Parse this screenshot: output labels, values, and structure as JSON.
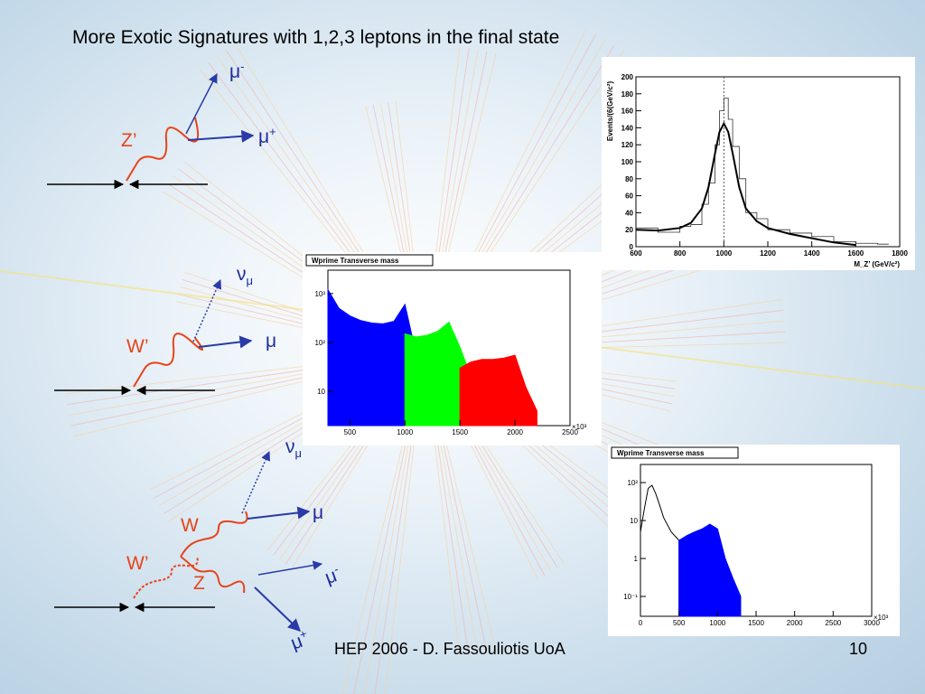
{
  "slide": {
    "title": "More Exotic Signatures with 1,2,3 leptons in the final state",
    "footer": "HEP 2006 - D. Fassouliotis UoA",
    "page_number": "10"
  },
  "diagrams": {
    "zprime": {
      "boson": "Z’",
      "lepton_top_base": "μ",
      "lepton_top_sup": "-",
      "lepton_bottom_base": "μ",
      "lepton_bottom_sup": "+"
    },
    "wprime": {
      "boson": "W’",
      "neutrino_base": "ν",
      "neutrino_sub": "μ",
      "lepton": "μ"
    },
    "wz": {
      "boson": "W’",
      "w": "W",
      "z": "Z",
      "neutrino_base": "ν",
      "neutrino_sub": "μ",
      "lepton_w": "μ",
      "lepton_z1_base": "μ",
      "lepton_z1_sup": "-",
      "lepton_z2_base": "μ",
      "lepton_z2_sup": "+"
    }
  },
  "chart_data": [
    {
      "type": "line",
      "name": "zprime-mass",
      "ylabel": "Events/(6(GeV/c²)",
      "xlabel": "M_Z’ (GeV/c²)",
      "xlim": [
        600,
        1800
      ],
      "ylim": [
        0,
        200
      ],
      "x_ticks": [
        "600",
        "800",
        "1000",
        "1200",
        "1400",
        "1600",
        "1800"
      ],
      "y_ticks": [
        "0",
        "20",
        "40",
        "60",
        "80",
        "100",
        "120",
        "140",
        "160",
        "180",
        "200"
      ],
      "peak": 1000,
      "fit": {
        "x": [
          600,
          700,
          800,
          850,
          900,
          930,
          960,
          980,
          1000,
          1020,
          1040,
          1070,
          1100,
          1150,
          1200,
          1300,
          1400,
          1500,
          1600
        ],
        "y": [
          20,
          19,
          22,
          28,
          45,
          70,
          110,
          135,
          145,
          135,
          110,
          70,
          45,
          30,
          22,
          15,
          10,
          5,
          2
        ]
      },
      "histogram": {
        "x": [
          600,
          700,
          800,
          850,
          900,
          930,
          960,
          980,
          1000,
          1020,
          1040,
          1070,
          1100,
          1150,
          1200,
          1300,
          1400,
          1500,
          1600,
          1700
        ],
        "y": [
          22,
          17,
          24,
          26,
          50,
          75,
          120,
          160,
          175,
          150,
          118,
          80,
          40,
          33,
          20,
          16,
          12,
          6,
          4,
          3
        ]
      }
    },
    {
      "type": "area",
      "name": "wprime-mt-3",
      "title": "Wprime Transverse mass",
      "log_y": true,
      "xlim": [
        300,
        2500
      ],
      "x_ticks": [
        "500",
        "1000",
        "1500",
        "2000",
        "2500"
      ],
      "x_exponent": "×10³",
      "y_ticks": [
        "10",
        "10²",
        "10³"
      ],
      "series": [
        {
          "color": "#0000ff",
          "x": [
            300,
            400,
            500,
            600,
            700,
            800,
            900,
            1000,
            1100,
            1200,
            1300,
            1400
          ],
          "y": [
            1200,
            500,
            350,
            280,
            250,
            240,
            270,
            600,
            60,
            30,
            15,
            8
          ]
        },
        {
          "color": "#00ff00",
          "x": [
            1000,
            1100,
            1200,
            1300,
            1400,
            1500,
            1600
          ],
          "y": [
            150,
            130,
            140,
            170,
            260,
            80,
            20
          ]
        },
        {
          "color": "#ff0000",
          "x": [
            1500,
            1600,
            1700,
            1800,
            1900,
            2000,
            2100,
            2200
          ],
          "y": [
            30,
            40,
            45,
            45,
            48,
            55,
            12,
            4
          ]
        }
      ]
    },
    {
      "type": "area",
      "name": "wprime-mt-wz",
      "title": "Wprime Transverse mass",
      "log_y": true,
      "xlim": [
        0,
        3000
      ],
      "x_ticks": [
        "0",
        "500",
        "1000",
        "1500",
        "2000",
        "2500",
        "3000"
      ],
      "x_exponent": "×10³",
      "y_ticks": [
        "10⁻¹",
        "1",
        "10",
        "10²"
      ],
      "series": [
        {
          "color": "#000000",
          "x": [
            0,
            50,
            100,
            150,
            200,
            250,
            300,
            400,
            500
          ],
          "y": [
            5,
            20,
            70,
            85,
            50,
            25,
            12,
            5,
            3
          ]
        },
        {
          "color": "#0000ff",
          "x": [
            500,
            600,
            700,
            800,
            900,
            1000,
            1100,
            1200,
            1300
          ],
          "y": [
            3,
            4,
            5,
            6,
            8,
            6,
            1,
            0.3,
            0.1
          ]
        }
      ]
    }
  ]
}
